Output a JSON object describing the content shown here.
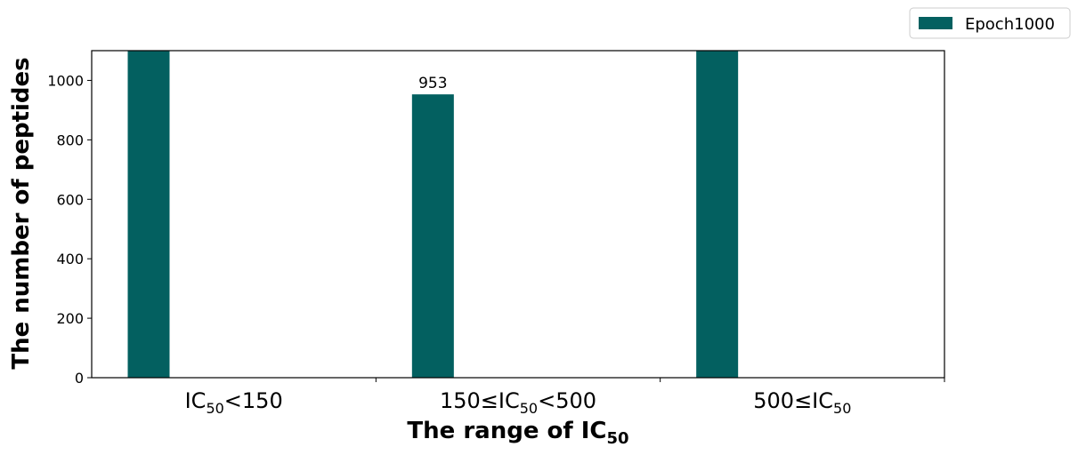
{
  "chart_data": {
    "type": "bar",
    "categories": [
      {
        "pre": "IC",
        "sub": "50",
        "post": "<150"
      },
      {
        "pre": "150≤IC",
        "sub": "50",
        "post": "<500"
      },
      {
        "pre": "500≤IC",
        "sub": "50",
        "post": ""
      }
    ],
    "series": [
      {
        "name": "Epoch1000",
        "color": "#036060",
        "values": [
          1100,
          953,
          1100
        ],
        "labels": [
          "",
          "953",
          ""
        ]
      }
    ],
    "xlabel": {
      "pre": "The range of IC",
      "sub": "50"
    },
    "ylabel": "The number of peptides",
    "ylim": [
      0,
      1100
    ],
    "yticks": [
      0,
      200,
      400,
      600,
      800,
      1000
    ],
    "legend_position": "top-right, outside plot",
    "grid": false
  }
}
